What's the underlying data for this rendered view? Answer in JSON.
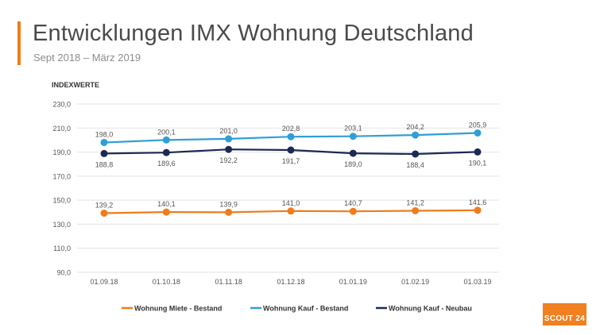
{
  "header": {
    "title": "Entwicklungen IMX Wohnung Deutschland",
    "subtitle": "Sept 2018 – März 2019"
  },
  "logo": {
    "text": "SCOUT 24",
    "color": "#f08020"
  },
  "chart_data": {
    "type": "line",
    "title": "Entwicklungen IMX Wohnung Deutschland",
    "subtitle": "Sept 2018 – März 2019",
    "ylabel": "INDEXWERTE",
    "xlabel": "",
    "x": [
      "01.09.18",
      "01.10.18",
      "01.11.18",
      "01.12.18",
      "01.01.19",
      "01.02.19",
      "01.03.19"
    ],
    "ylim": [
      90,
      230
    ],
    "yticks": [
      90,
      110,
      130,
      150,
      170,
      190,
      210,
      230
    ],
    "ytick_labels": [
      "90,0",
      "110,0",
      "130,0",
      "150,0",
      "170,0",
      "190,0",
      "210,0",
      "230,0"
    ],
    "grid": true,
    "legend_position": "bottom",
    "series": [
      {
        "name": "Wohnung Miete - Bestand",
        "color": "#f07c1b",
        "label_position": "above",
        "values": [
          139.2,
          140.1,
          139.9,
          141.0,
          140.7,
          141.2,
          141.6
        ],
        "labels": [
          "139,2",
          "140,1",
          "139,9",
          "141,0",
          "140,7",
          "141,2",
          "141,6"
        ]
      },
      {
        "name": "Wohnung Kauf - Bestand",
        "color": "#2e9fd6",
        "label_position": "above",
        "values": [
          198.0,
          200.1,
          201.0,
          202.8,
          203.1,
          204.2,
          205.9
        ],
        "labels": [
          "198,0",
          "200,1",
          "201,0",
          "202,8",
          "203,1",
          "204,2",
          "205,9"
        ]
      },
      {
        "name": "Wohnung Kauf - Neubau",
        "color": "#1b2a55",
        "label_position": "below",
        "values": [
          188.8,
          189.6,
          192.2,
          191.7,
          189.0,
          188.4,
          190.1
        ],
        "labels": [
          "188,8",
          "189,6",
          "192,2",
          "191,7",
          "189,0",
          "188,4",
          "190,1"
        ]
      }
    ]
  }
}
